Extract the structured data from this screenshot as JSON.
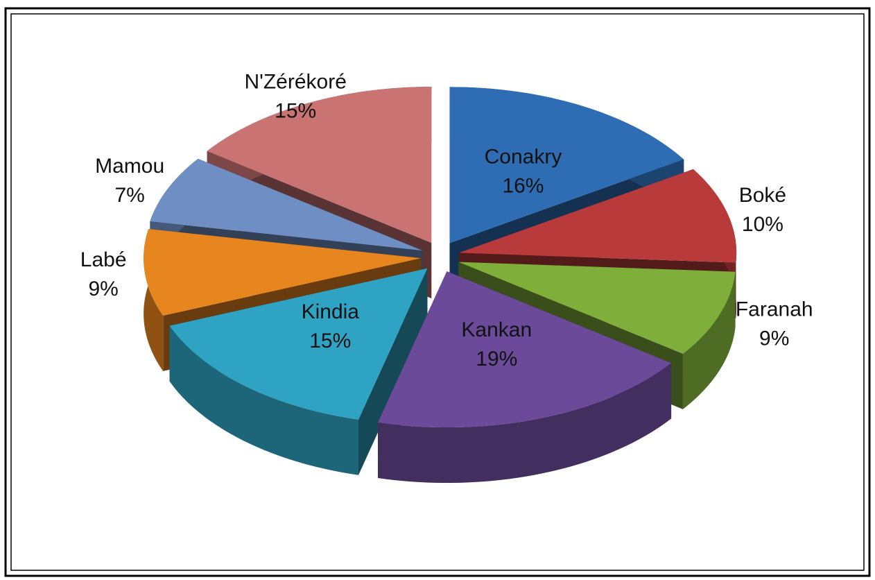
{
  "chart_data": {
    "type": "pie3d",
    "categories": [
      "Conakry",
      "Boké",
      "Faranah",
      "Kankan",
      "Kindia",
      "Labé",
      "Mamou",
      "N'Zérékoré"
    ],
    "values": [
      16,
      10,
      9,
      19,
      15,
      9,
      7,
      15
    ],
    "value_labels": [
      "16%",
      "10%",
      "9%",
      "19%",
      "15%",
      "9%",
      "7%",
      "15%"
    ],
    "colors": [
      "#2e6db4",
      "#b83a3a",
      "#7fae3a",
      "#6b4a9a",
      "#2fa3c3",
      "#e7851f",
      "#6f8fc4",
      "#c97373"
    ]
  }
}
